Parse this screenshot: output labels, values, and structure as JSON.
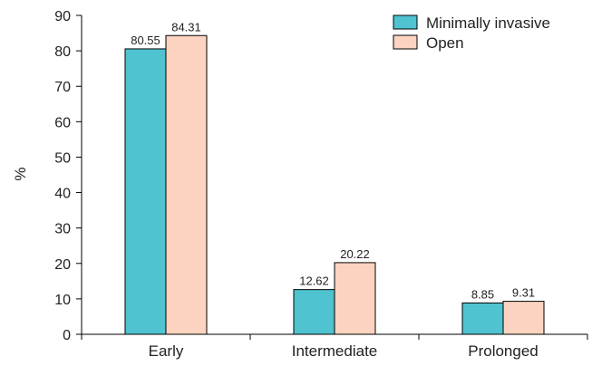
{
  "chart_data": {
    "type": "bar",
    "categories": [
      "Early",
      "Intermediate",
      "Prolonged"
    ],
    "series": [
      {
        "name": "Minimally invasive",
        "values": [
          80.55,
          12.62,
          8.85
        ],
        "labels": [
          "80.55",
          "12.62",
          "8.85"
        ],
        "color": "#4fc3cf"
      },
      {
        "name": "Open",
        "values": [
          84.31,
          20.22,
          9.31
        ],
        "labels": [
          "84.31",
          "20.22",
          "9.31"
        ],
        "color": "#fcd3c1"
      }
    ],
    "ylabel": "%",
    "ylim": [
      0,
      90
    ],
    "yticks": [
      0,
      10,
      20,
      30,
      40,
      50,
      60,
      70,
      80,
      90
    ],
    "legend_position": "top-right",
    "grid": false
  }
}
